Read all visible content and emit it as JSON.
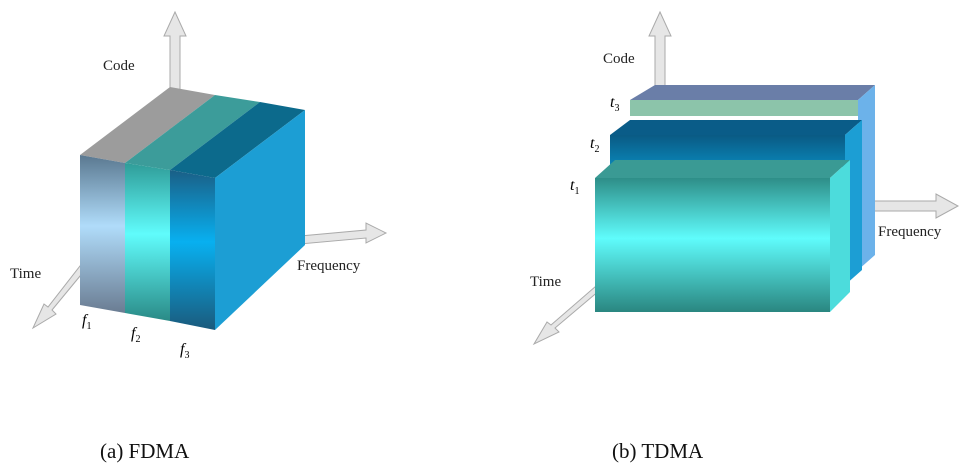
{
  "panels": [
    {
      "axes": {
        "vertical": "Code",
        "depth": "Time",
        "horizontal": "Frequency"
      },
      "blocks": [
        {
          "base": "f",
          "sub": "1"
        },
        {
          "base": "f",
          "sub": "2"
        },
        {
          "base": "f",
          "sub": "3"
        }
      ],
      "caption": "(a) FDMA"
    },
    {
      "axes": {
        "vertical": "Code",
        "depth": "Time",
        "horizontal": "Frequency"
      },
      "blocks": [
        {
          "base": "t",
          "sub": "1"
        },
        {
          "base": "t",
          "sub": "2"
        },
        {
          "base": "t",
          "sub": "3"
        }
      ],
      "caption": "(b) TDMA"
    }
  ]
}
